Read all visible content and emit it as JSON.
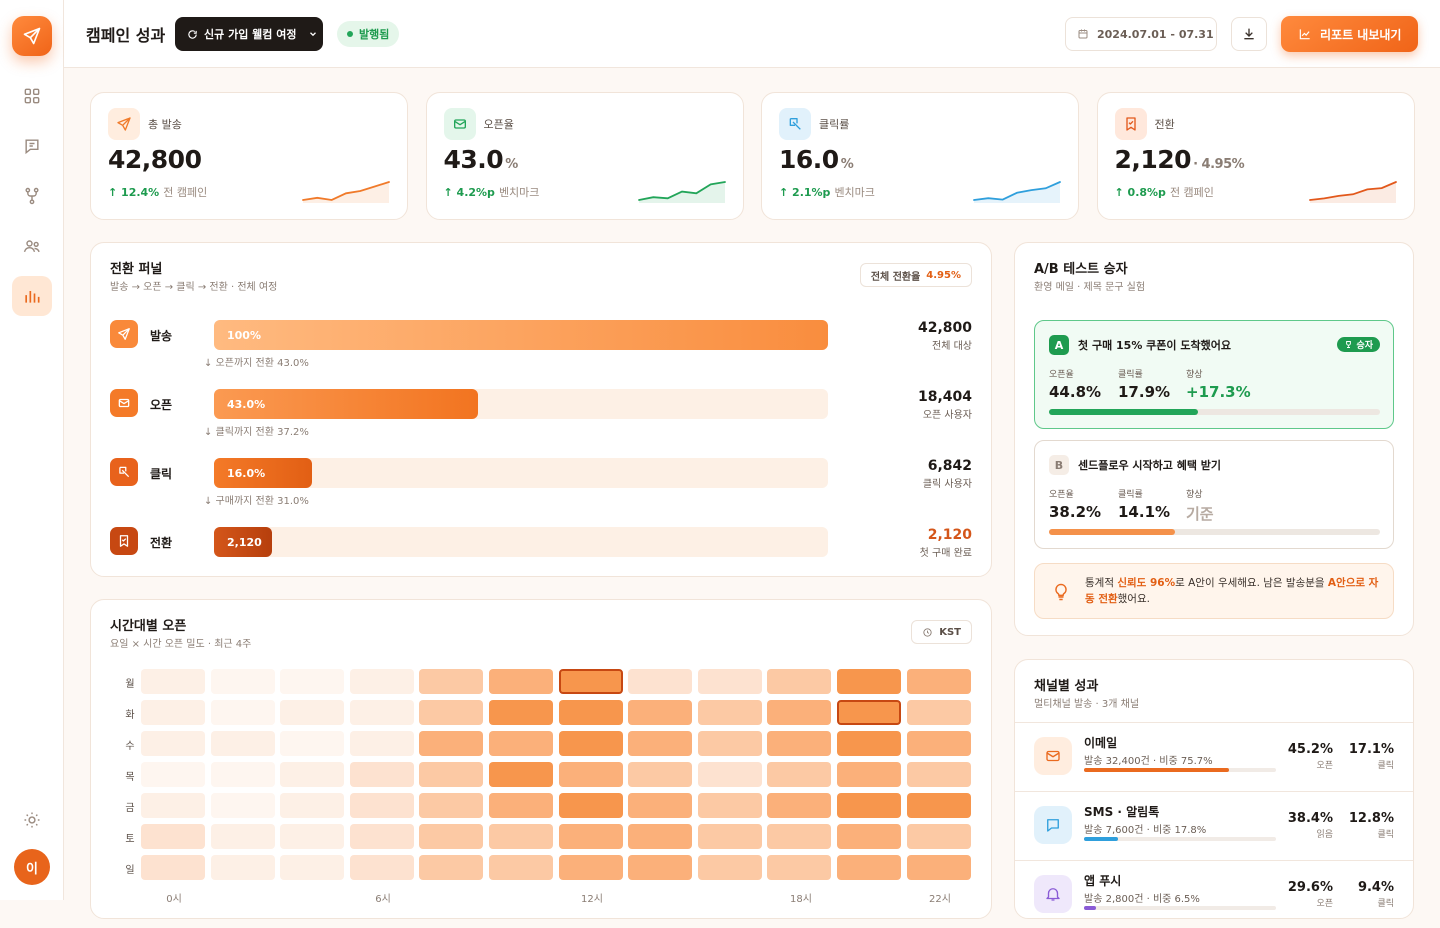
{
  "header": {
    "title": "캠페인 성과",
    "campaign": "신규 가입 웰컴 여정",
    "status": "발행됨",
    "date_range": "2024.07.01 - 07.31",
    "export_label": "리포트 내보내기"
  },
  "sidebar": {
    "avatar": "이",
    "items": [
      "dashboard-icon",
      "messages-icon",
      "flow-icon",
      "audience-icon",
      "analytics-icon"
    ],
    "active": "analytics-icon"
  },
  "kpis": [
    {
      "label": "총 발송",
      "value": "42,800",
      "suffix": "",
      "delta": "12.4%",
      "delta_note": "전 캠페인",
      "color": "#f07a2a",
      "spark": [
        3,
        3.5,
        3,
        4.5,
        5,
        6,
        7
      ]
    },
    {
      "label": "오픈율",
      "value": "43.0",
      "suffix": "%",
      "delta": "4.2%p",
      "delta_note": "벤치마크",
      "color": "#22a559",
      "spark": [
        4,
        4.5,
        4.3,
        5.5,
        5.2,
        6.8,
        7.2
      ]
    },
    {
      "label": "클릭률",
      "value": "16.0",
      "suffix": "%",
      "delta": "2.1%p",
      "delta_note": "벤치마크",
      "color": "#2f9fdc",
      "spark": [
        3,
        3.4,
        3.1,
        4.6,
        5.2,
        5.6,
        7
      ]
    },
    {
      "label": "전환",
      "value": "2,120",
      "suffix": "· 4.95%",
      "delta": "0.8%p",
      "delta_note": "전 캠페인",
      "color": "#e2581b",
      "spark": [
        3,
        3.4,
        4,
        4.4,
        5.6,
        5.9,
        7.4
      ]
    }
  ],
  "funnel": {
    "title": "전환 퍼널",
    "subtitle": "발송 → 오픈 → 클릭 → 전환 · 전체 여정",
    "overall_label": "전체 전환율",
    "overall_value": "4.95%",
    "steps": [
      {
        "name": "발송",
        "pct": 100,
        "bar_label": "100%",
        "value": "42,800",
        "sub": "전체 대상",
        "note": "↓  오픈까지 전환 43.0%"
      },
      {
        "name": "오픈",
        "pct": 43,
        "bar_label": "43.0%",
        "value": "18,404",
        "sub": "오픈 사용자",
        "note": "↓  클릭까지 전환 37.2%"
      },
      {
        "name": "클릭",
        "pct": 16,
        "bar_label": "16.0%",
        "value": "6,842",
        "sub": "클릭 사용자",
        "note": "↓  구매까지 전환 31.0%"
      },
      {
        "name": "전환",
        "pct": 9.5,
        "bar_label": "2,120",
        "value": "2,120",
        "sub": "첫 구매 완료",
        "note": ""
      }
    ]
  },
  "heatmap": {
    "title": "시간대별 오픈",
    "subtitle": "요일 × 시간 오픈 밀도 · 최근 4주",
    "tz": "KST",
    "days": [
      "월",
      "화",
      "수",
      "목",
      "금",
      "토",
      "일"
    ],
    "x_labels": [
      "0시",
      "6시",
      "12시",
      "18시",
      "22시"
    ],
    "levels": [
      [
        2,
        1,
        1,
        2,
        4,
        5,
        8,
        3,
        3,
        4,
        8,
        5
      ],
      [
        2,
        1,
        2,
        2,
        4,
        7,
        7,
        5,
        4,
        5,
        8,
        4
      ],
      [
        2,
        2,
        1,
        2,
        5,
        5,
        7,
        5,
        4,
        5,
        7,
        5
      ],
      [
        1,
        1,
        2,
        3,
        4,
        7,
        5,
        4,
        3,
        4,
        5,
        4
      ],
      [
        2,
        1,
        2,
        3,
        4,
        5,
        7,
        5,
        4,
        6,
        7,
        7
      ],
      [
        3,
        2,
        2,
        3,
        4,
        4,
        5,
        5,
        4,
        4,
        5,
        4
      ],
      [
        3,
        2,
        2,
        3,
        4,
        4,
        5,
        5,
        4,
        4,
        5,
        5
      ]
    ],
    "highlights": [
      [
        0,
        6
      ],
      [
        1,
        10
      ]
    ]
  },
  "ab": {
    "title": "A/B 테스트 승자",
    "subtitle": "환영 메일 · 제목 문구 실험",
    "variants": [
      {
        "badge": "A",
        "subject": "첫 구매 15% 쿠폰이 도착했어요",
        "winner_label": "승자",
        "open_label": "오픈율",
        "open": "44.8%",
        "click_label": "클릭률",
        "click": "17.9%",
        "lift_label": "향상",
        "lift": "+17.3%",
        "bar": 0.45
      },
      {
        "badge": "B",
        "subject": "센드플로우 시작하고 혜택 받기",
        "open_label": "오픈율",
        "open": "38.2%",
        "click_label": "클릭률",
        "click": "14.1%",
        "lift_label": "향상",
        "lift": "기준",
        "bar": 0.38
      }
    ],
    "insight": {
      "t1": "통계적 ",
      "b1": "신뢰도 96%",
      "t2": "로 A안이 우세해요. 남은 발송분을 ",
      "b2": "A안으로 자동 전환",
      "t3": "했어요."
    }
  },
  "channels": {
    "title": "채널별 성과",
    "subtitle": "멀티채널 발송 · 3개 채널",
    "items": [
      {
        "name": "이메일",
        "sub": "발송 32,400건 · 비중 75.7%",
        "share": 0.757,
        "m1": "45.2%",
        "m1_label": "오픈",
        "m2": "17.1%",
        "m2_label": "클릭"
      },
      {
        "name": "SMS · 알림톡",
        "sub": "발송 7,600건 · 비중 17.8%",
        "share": 0.178,
        "m1": "38.4%",
        "m1_label": "읽음",
        "m2": "12.8%",
        "m2_label": "클릭"
      },
      {
        "name": "앱 푸시",
        "sub": "발송 2,800건 · 비중 6.5%",
        "share": 0.065,
        "m1": "29.6%",
        "m1_label": "오픈",
        "m2": "9.4%",
        "m2_label": "클릭"
      }
    ]
  }
}
